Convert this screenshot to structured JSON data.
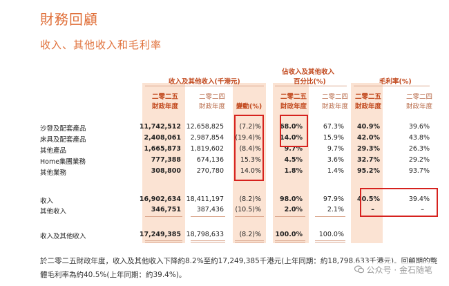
{
  "title": "財務回顧",
  "subtitle": "收入、其他收入和毛利率",
  "headers": {
    "group1": "收入及其他收入(千港元)",
    "group2_line1": "佔收入及其他收入",
    "group2_line2": "百分比(%)",
    "group3": "毛利率(%)",
    "year_cur": "二零二五",
    "year_prev": "二零二四",
    "fy": "財政年度",
    "change": "變動(%)"
  },
  "rows": [
    {
      "label": "沙發及配套產品",
      "rev_cur": "11,742,512",
      "rev_prev": "12,658,825",
      "change": "(7.2)%",
      "pct_cur": "68.0%",
      "pct_prev": "67.3%",
      "gm_cur": "40.9%",
      "gm_prev": "39.6%"
    },
    {
      "label": "床具及配套產品",
      "rev_cur": "2,408,061",
      "rev_prev": "2,987,854",
      "change": "(19.4)%",
      "pct_cur": "14.0%",
      "pct_prev": "15.9%",
      "gm_cur": "42.0%",
      "gm_prev": "43.8%"
    },
    {
      "label": "其他產品",
      "rev_cur": "1,665,873",
      "rev_prev": "1,819,602",
      "change": "(8.4)%",
      "pct_cur": "9.7%",
      "pct_prev": "9.7%",
      "gm_cur": "29.3%",
      "gm_prev": "26.3%"
    },
    {
      "label": "Home集團業務",
      "rev_cur": "777,388",
      "rev_prev": "674,136",
      "change": "15.3%",
      "pct_cur": "4.5%",
      "pct_prev": "3.6%",
      "gm_cur": "32.7%",
      "gm_prev": "29.2%"
    },
    {
      "label": "其他業務",
      "rev_cur": "308,800",
      "rev_prev": "270,780",
      "change": "14.0%",
      "pct_cur": "1.8%",
      "pct_prev": "1.4%",
      "gm_cur": "95.2%",
      "gm_prev": "93.7%"
    }
  ],
  "revenue": {
    "label": "收入",
    "rev_cur": "16,902,634",
    "rev_prev": "18,411,197",
    "change": "(8.2)%",
    "pct_cur": "98.0%",
    "pct_prev": "97.9%",
    "gm_cur": "40.5%",
    "gm_prev": "39.4%"
  },
  "other_income": {
    "label": "其他收入",
    "rev_cur": "346,751",
    "rev_prev": "387,436",
    "change": "(10.5)%",
    "pct_cur": "2.0%",
    "pct_prev": "2.1%",
    "gm_cur": "–",
    "gm_prev": "–"
  },
  "total": {
    "label": "收入及其他收入",
    "rev_cur": "17,249,385",
    "rev_prev": "18,798,633",
    "change": "(8.2)%",
    "pct_cur": "100.0%",
    "pct_prev": "100.0%"
  },
  "footer": {
    "line1": "於二零二五財政年度，收入及其他收入下降約8.2%至約17,249,385千港元(上年同期：約18,798,633千港元)。回顧期的整",
    "line2": "體毛利率為約40.5%(上年同期：約39.4%)。"
  },
  "watermark": "公众号 · 金石随笔",
  "colors": {
    "accent": "#e0703a",
    "band": "#fbe3d3",
    "highlight": "#d6221e"
  }
}
